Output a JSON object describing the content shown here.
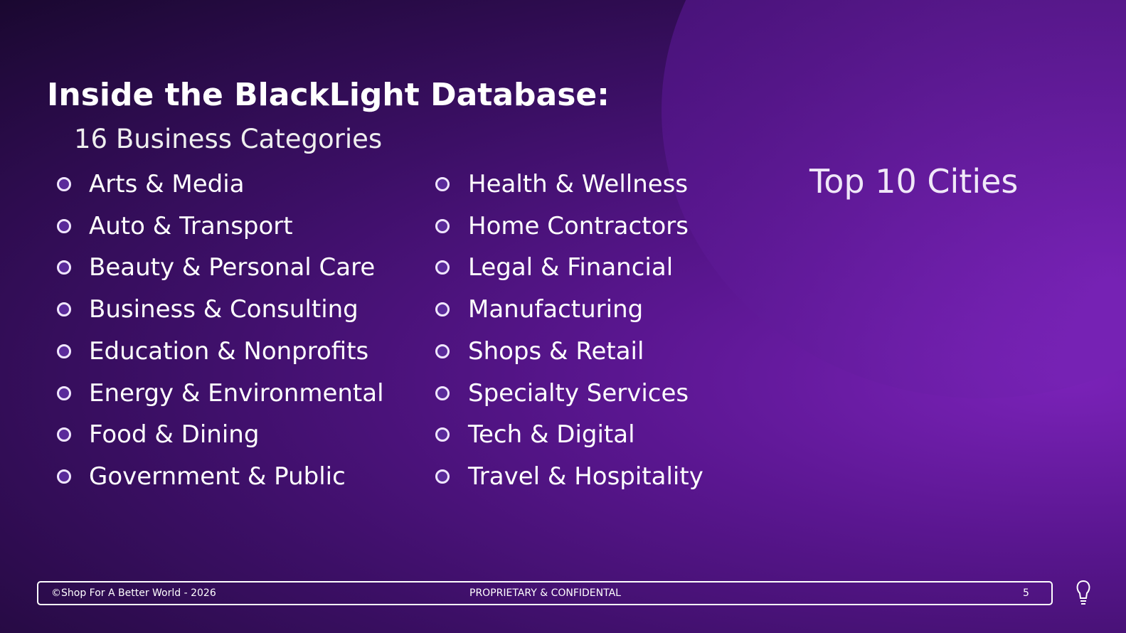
{
  "header": {
    "title": "Inside the BlackLight Database:",
    "subtitle": "16 Business Categories"
  },
  "categories": {
    "left": [
      "Arts & Media",
      "Auto & Transport",
      "Beauty & Personal Care",
      "Business & Consulting",
      "Education & Nonprofits",
      "Energy & Environmental",
      "Food & Dining",
      "Government & Public"
    ],
    "right": [
      "Health & Wellness",
      "Home Contractors",
      "Legal & Financial",
      "Manufacturing",
      "Shops & Retail",
      "Specialty Services",
      "Tech & Digital",
      "Travel & Hospitality"
    ]
  },
  "side": {
    "title": "Top 10 Cities"
  },
  "footer": {
    "copyright": "©Shop For A Better World  - 2026",
    "notice": "PROPRIETARY & CONFIDENTAL",
    "page": "5"
  }
}
